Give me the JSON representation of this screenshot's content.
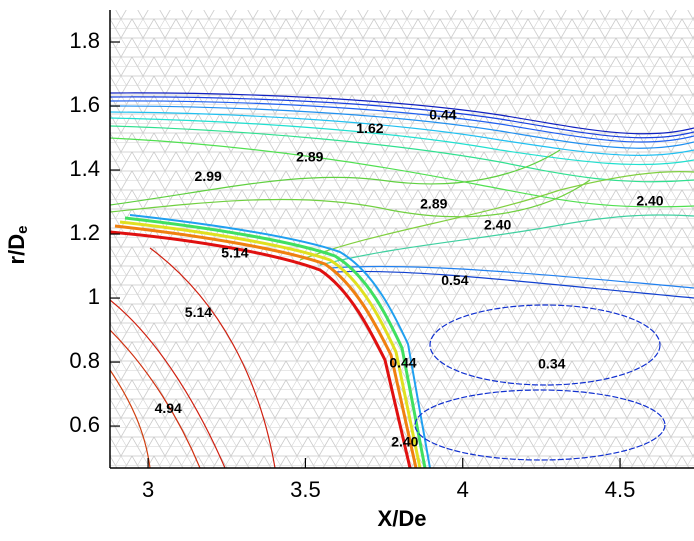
{
  "chart_data": {
    "type": "contour",
    "xlabel": "X/De",
    "ylabel": "r/D",
    "ylabel_subscript": "e",
    "xlim": [
      2.879,
      4.735
    ],
    "ylim": [
      0.469,
      1.9
    ],
    "xticks": [
      3,
      3.5,
      4,
      4.5
    ],
    "yticks": [
      0.6,
      0.8,
      1,
      1.2,
      1.4,
      1.6,
      1.8
    ],
    "contour_labels": [
      {
        "level": 0.44,
        "x": 3.937,
        "y": 1.569
      },
      {
        "level": 1.62,
        "x": 3.705,
        "y": 1.528
      },
      {
        "level": 2.89,
        "x": 3.514,
        "y": 1.438
      },
      {
        "level": 2.99,
        "x": 3.191,
        "y": 1.378
      },
      {
        "level": 2.89,
        "x": 3.908,
        "y": 1.291
      },
      {
        "level": {
          "value": 2.4,
          "label": "2.40"
        },
        "x": 4.111,
        "y": 1.225
      },
      {
        "level": {
          "value": 2.4,
          "label": "2.40"
        },
        "x": 4.595,
        "y": 1.3
      },
      {
        "level": 5.14,
        "x": 3.276,
        "y": 1.138
      },
      {
        "level": 0.54,
        "x": 3.975,
        "y": 1.053
      },
      {
        "level": 5.14,
        "x": 3.16,
        "y": 0.953
      },
      {
        "level": 0.34,
        "x": 4.283,
        "y": 0.791
      },
      {
        "level": 4.94,
        "x": 3.064,
        "y": 0.653
      },
      {
        "level": 0.44,
        "x": 3.81,
        "y": 0.794
      },
      {
        "level": {
          "value": 2.4,
          "label": "2.40"
        },
        "x": 3.816,
        "y": 0.547
      }
    ]
  }
}
